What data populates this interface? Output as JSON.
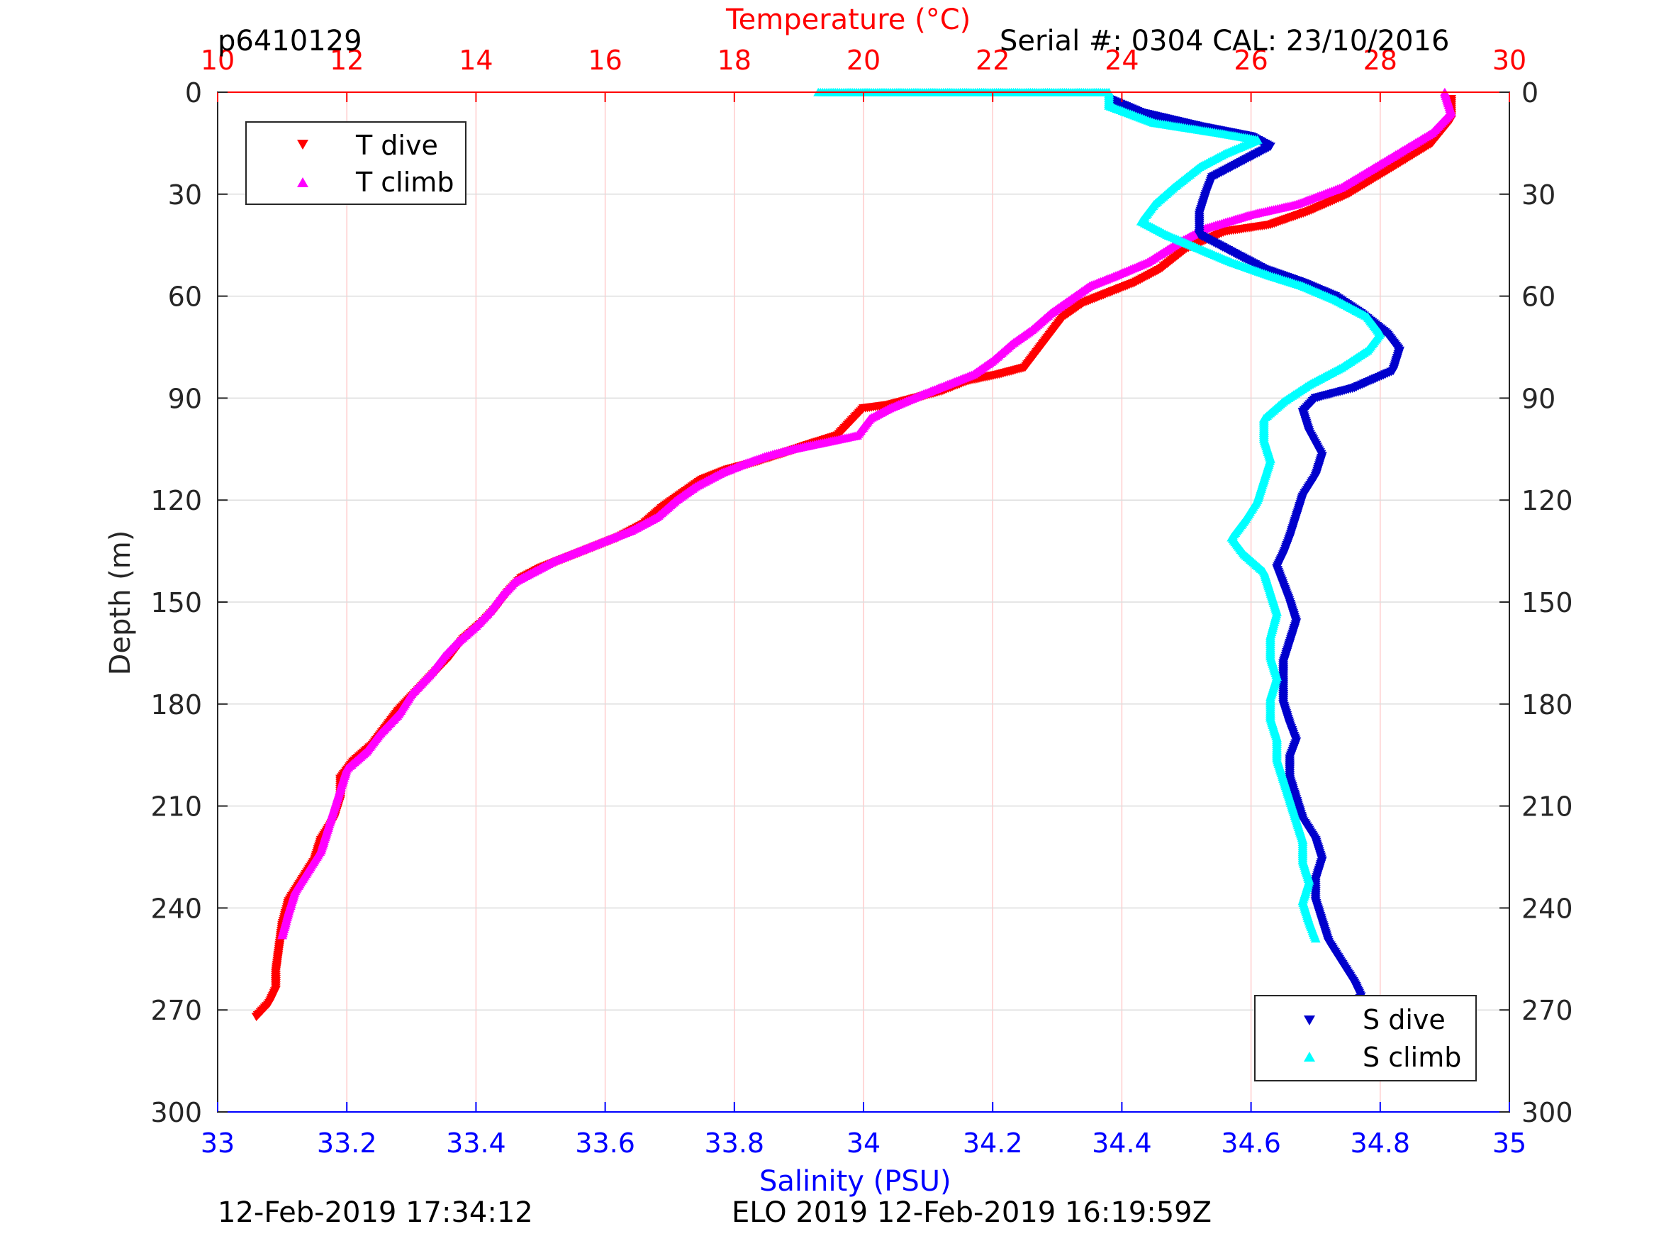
{
  "header": {
    "profile_id": "p6410129",
    "serial_cal": "Serial #: 0304  CAL: 23/10/2016",
    "footer_left": "12-Feb-2019 17:34:12",
    "footer_center": "ELO 2019 12-Feb-2019 16:19:59Z"
  },
  "colors": {
    "t_dive": "#ff0000",
    "t_climb": "#ff00ff",
    "s_dive": "#0000cc",
    "s_climb": "#00ffff",
    "temp_axis": "#ff0000",
    "sal_axis": "#0000ff",
    "grid_temp": "#ffcccc",
    "grid_depth": "#dddddd"
  },
  "chart_data": {
    "type": "scatter",
    "title": "Temperature (°C)",
    "xlabel": "Salinity (PSU)",
    "ylabel": "Depth (m)",
    "top_axis": {
      "label": "Temperature (°C)",
      "lim": [
        10,
        30
      ],
      "ticks": [
        "10",
        "12",
        "14",
        "16",
        "18",
        "20",
        "22",
        "24",
        "26",
        "28",
        "30"
      ]
    },
    "bottom_axis": {
      "label": "Salinity (PSU)",
      "lim": [
        33,
        35
      ],
      "ticks": [
        "33",
        "33.2",
        "33.4",
        "33.6",
        "33.8",
        "34",
        "34.2",
        "34.4",
        "34.6",
        "34.8",
        "35"
      ]
    },
    "y_axis": {
      "lim": [
        0,
        300
      ],
      "reversed": true,
      "ticks": [
        "0",
        "30",
        "60",
        "90",
        "120",
        "150",
        "180",
        "210",
        "240",
        "270",
        "300"
      ]
    },
    "grid": true,
    "legend_temperature": {
      "position": "top-left",
      "entries": [
        "T dive",
        "T climb"
      ]
    },
    "legend_salinity": {
      "position": "bottom-right",
      "entries": [
        "S dive",
        "S climb"
      ]
    },
    "series": [
      {
        "name": "T dive",
        "axis": "temperature",
        "marker": "triangle-down",
        "points": [
          [
            29.1,
            2
          ],
          [
            29.1,
            8
          ],
          [
            28.8,
            15
          ],
          [
            28.2,
            22
          ],
          [
            27.5,
            30
          ],
          [
            26.9,
            35
          ],
          [
            26.3,
            39
          ],
          [
            25.6,
            41
          ],
          [
            25.0,
            46
          ],
          [
            24.6,
            52
          ],
          [
            24.2,
            56
          ],
          [
            23.8,
            59
          ],
          [
            23.4,
            62
          ],
          [
            23.1,
            66
          ],
          [
            22.9,
            71
          ],
          [
            22.7,
            76
          ],
          [
            22.5,
            81
          ],
          [
            22.1,
            83
          ],
          [
            21.6,
            85
          ],
          [
            21.2,
            88
          ],
          [
            20.8,
            90
          ],
          [
            20.4,
            92
          ],
          [
            20.0,
            93
          ],
          [
            19.8,
            97
          ],
          [
            19.6,
            101
          ],
          [
            19.1,
            104
          ],
          [
            18.8,
            106
          ],
          [
            18.3,
            109
          ],
          [
            17.9,
            111
          ],
          [
            17.5,
            114
          ],
          [
            17.2,
            118
          ],
          [
            16.9,
            122
          ],
          [
            16.6,
            127
          ],
          [
            16.2,
            131
          ],
          [
            15.8,
            134
          ],
          [
            15.4,
            137
          ],
          [
            15.0,
            140
          ],
          [
            14.7,
            143
          ],
          [
            14.5,
            147
          ],
          [
            14.3,
            152
          ],
          [
            14.1,
            156
          ],
          [
            13.8,
            161
          ],
          [
            13.6,
            166
          ],
          [
            13.4,
            170
          ],
          [
            13.1,
            176
          ],
          [
            12.8,
            182
          ],
          [
            12.6,
            187
          ],
          [
            12.4,
            192
          ],
          [
            12.1,
            197
          ],
          [
            11.9,
            202
          ],
          [
            11.9,
            208
          ],
          [
            11.8,
            214
          ],
          [
            11.6,
            220
          ],
          [
            11.5,
            226
          ],
          [
            11.3,
            232
          ],
          [
            11.1,
            238
          ],
          [
            11.0,
            245
          ],
          [
            10.95,
            252
          ],
          [
            10.9,
            259
          ],
          [
            10.9,
            264
          ],
          [
            10.8,
            268
          ],
          [
            10.6,
            272
          ]
        ]
      },
      {
        "name": "T climb",
        "axis": "temperature",
        "marker": "triangle-up",
        "points": [
          [
            29.0,
            0
          ],
          [
            29.1,
            6
          ],
          [
            28.8,
            12
          ],
          [
            28.1,
            20
          ],
          [
            27.4,
            28
          ],
          [
            26.7,
            33
          ],
          [
            26.0,
            36
          ],
          [
            25.3,
            40
          ],
          [
            24.9,
            44
          ],
          [
            24.4,
            50
          ],
          [
            23.9,
            54
          ],
          [
            23.5,
            57
          ],
          [
            23.2,
            61
          ],
          [
            22.9,
            65
          ],
          [
            22.6,
            70
          ],
          [
            22.3,
            74
          ],
          [
            22.0,
            79
          ],
          [
            21.7,
            83
          ],
          [
            21.3,
            86
          ],
          [
            20.9,
            89
          ],
          [
            20.4,
            93
          ],
          [
            20.1,
            96
          ],
          [
            19.9,
            101
          ],
          [
            19.4,
            103
          ],
          [
            18.9,
            105
          ],
          [
            18.5,
            107
          ],
          [
            18.2,
            109
          ],
          [
            17.8,
            112
          ],
          [
            17.4,
            116
          ],
          [
            17.1,
            120
          ],
          [
            16.8,
            125
          ],
          [
            16.4,
            129
          ],
          [
            16.0,
            132
          ],
          [
            15.6,
            135
          ],
          [
            15.2,
            138
          ],
          [
            14.9,
            141
          ],
          [
            14.6,
            144
          ],
          [
            14.4,
            148
          ],
          [
            14.2,
            153
          ],
          [
            14.0,
            157
          ],
          [
            13.7,
            162
          ],
          [
            13.5,
            166
          ],
          [
            13.3,
            171
          ],
          [
            13.0,
            177
          ],
          [
            12.8,
            183
          ],
          [
            12.5,
            189
          ],
          [
            12.3,
            194
          ],
          [
            12.0,
            199
          ],
          [
            11.9,
            205
          ],
          [
            11.8,
            211
          ],
          [
            11.7,
            217
          ],
          [
            11.6,
            223
          ],
          [
            11.4,
            229
          ],
          [
            11.2,
            235
          ],
          [
            11.1,
            241
          ],
          [
            11.0,
            248
          ]
        ]
      },
      {
        "name": "S dive",
        "axis": "salinity",
        "marker": "triangle-down",
        "points": [
          [
            34.38,
            2
          ],
          [
            34.43,
            6
          ],
          [
            34.52,
            10
          ],
          [
            34.6,
            13
          ],
          [
            34.63,
            16
          ],
          [
            34.59,
            20
          ],
          [
            34.54,
            25
          ],
          [
            34.53,
            30
          ],
          [
            34.52,
            36
          ],
          [
            34.52,
            42
          ],
          [
            34.57,
            47
          ],
          [
            34.62,
            52
          ],
          [
            34.68,
            56
          ],
          [
            34.73,
            60
          ],
          [
            34.77,
            65
          ],
          [
            34.81,
            71
          ],
          [
            34.83,
            76
          ],
          [
            34.82,
            82
          ],
          [
            34.76,
            87
          ],
          [
            34.7,
            90
          ],
          [
            34.68,
            94
          ],
          [
            34.69,
            100
          ],
          [
            34.71,
            107
          ],
          [
            34.7,
            113
          ],
          [
            34.68,
            119
          ],
          [
            34.67,
            125
          ],
          [
            34.66,
            131
          ],
          [
            34.65,
            136
          ],
          [
            34.64,
            140
          ],
          [
            34.65,
            145
          ],
          [
            34.66,
            150
          ],
          [
            34.67,
            156
          ],
          [
            34.66,
            162
          ],
          [
            34.65,
            168
          ],
          [
            34.65,
            174
          ],
          [
            34.65,
            180
          ],
          [
            34.66,
            186
          ],
          [
            34.67,
            191
          ],
          [
            34.66,
            196
          ],
          [
            34.66,
            202
          ],
          [
            34.67,
            208
          ],
          [
            34.68,
            214
          ],
          [
            34.7,
            220
          ],
          [
            34.71,
            226
          ],
          [
            34.7,
            232
          ],
          [
            34.7,
            238
          ],
          [
            34.71,
            244
          ],
          [
            34.72,
            250
          ],
          [
            34.74,
            256
          ],
          [
            34.76,
            262
          ],
          [
            34.77,
            266
          ],
          [
            34.76,
            270
          ],
          [
            34.75,
            274
          ]
        ]
      },
      {
        "name": "S climb",
        "axis": "salinity",
        "marker": "triangle-up",
        "points": [
          [
            33.93,
            0
          ],
          [
            34.38,
            0
          ],
          [
            34.38,
            4
          ],
          [
            34.45,
            9
          ],
          [
            34.55,
            12
          ],
          [
            34.61,
            14
          ],
          [
            34.56,
            18
          ],
          [
            34.52,
            22
          ],
          [
            34.48,
            28
          ],
          [
            34.45,
            33
          ],
          [
            34.43,
            38
          ],
          [
            34.47,
            42
          ],
          [
            34.52,
            46
          ],
          [
            34.57,
            50
          ],
          [
            34.63,
            54
          ],
          [
            34.68,
            57
          ],
          [
            34.73,
            61
          ],
          [
            34.78,
            66
          ],
          [
            34.8,
            71
          ],
          [
            34.78,
            76
          ],
          [
            34.74,
            81
          ],
          [
            34.69,
            86
          ],
          [
            34.65,
            91
          ],
          [
            34.62,
            96
          ],
          [
            34.62,
            102
          ],
          [
            34.63,
            108
          ],
          [
            34.62,
            114
          ],
          [
            34.61,
            120
          ],
          [
            34.59,
            126
          ],
          [
            34.57,
            131
          ],
          [
            34.59,
            136
          ],
          [
            34.62,
            141
          ],
          [
            34.63,
            147
          ],
          [
            34.64,
            153
          ],
          [
            34.63,
            160
          ],
          [
            34.63,
            166
          ],
          [
            34.64,
            172
          ],
          [
            34.63,
            178
          ],
          [
            34.63,
            184
          ],
          [
            34.64,
            190
          ],
          [
            34.64,
            196
          ],
          [
            34.65,
            202
          ],
          [
            34.66,
            208
          ],
          [
            34.67,
            214
          ],
          [
            34.68,
            220
          ],
          [
            34.68,
            226
          ],
          [
            34.69,
            232
          ],
          [
            34.68,
            238
          ],
          [
            34.69,
            244
          ],
          [
            34.7,
            249
          ]
        ]
      }
    ]
  }
}
